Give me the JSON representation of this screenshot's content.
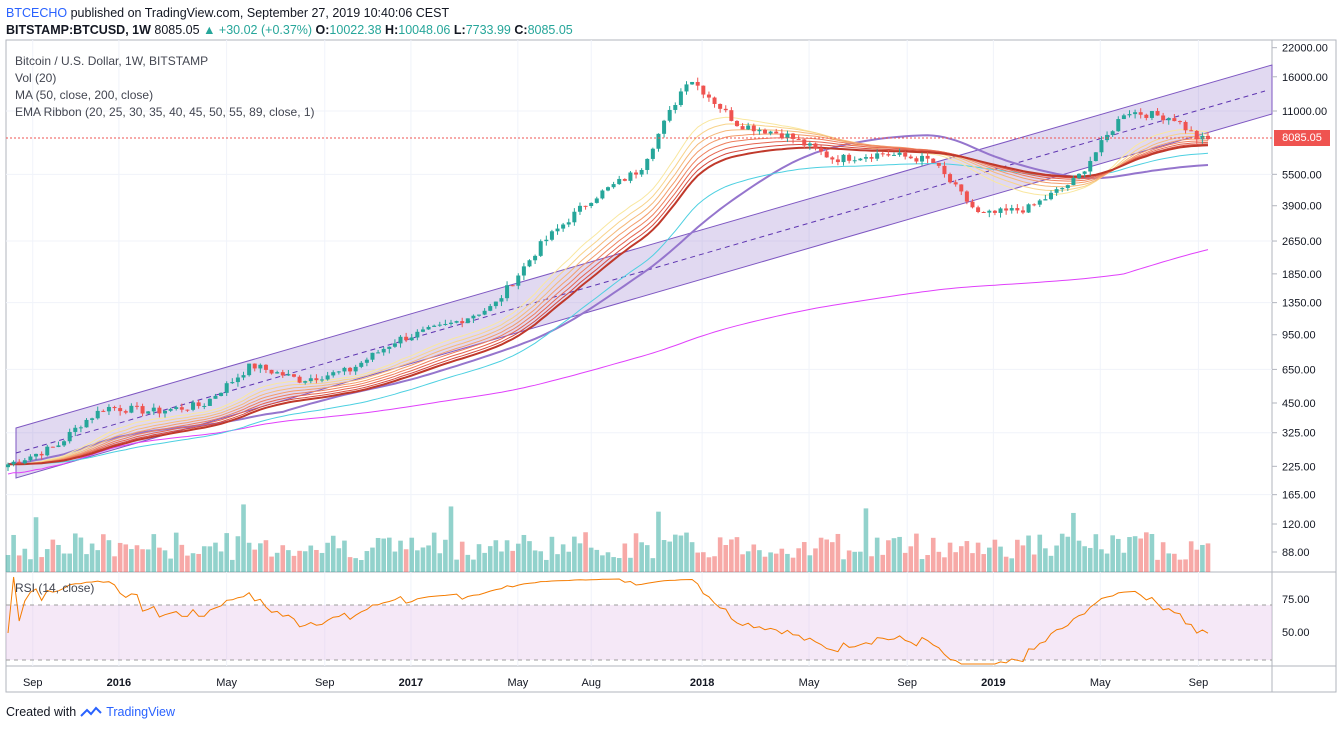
{
  "header": {
    "author": "BTCECHO",
    "published_text": " published on TradingView.com, September 27, 2019 10:40:06 CEST",
    "symbol": "BITSTAMP:BTCUSD, 1W",
    "price": "8085.05",
    "change": "+30.02 (+0.37%)",
    "o_label": "O:",
    "o_value": "10022.38",
    "h_label": "H:",
    "h_value": "10048.06",
    "l_label": "L:",
    "l_value": "7733.99",
    "c_label": "C:",
    "c_value": "8085.05"
  },
  "legend": {
    "title": "Bitcoin / U.S. Dollar, 1W, BITSTAMP",
    "vol": "Vol (20)",
    "ma": "MA (50, close, 200, close)",
    "ema": "EMA Ribbon (20, 25, 30, 35, 40, 45, 50, 55, 89, close, 1)"
  },
  "rsi": {
    "label": "RSI (14, close)",
    "upper": 70,
    "lower": 30,
    "ticks": [
      "75.00",
      "50.00"
    ]
  },
  "footer": {
    "created": "Created with",
    "brand": "TradingView"
  },
  "colors": {
    "up": "#26a69a",
    "down": "#ef5350",
    "channel": "#9575cd",
    "ma50": "#7e57c2",
    "ma200": "#e040fb",
    "rsi": "#f57c00",
    "accent": "#2962ff"
  },
  "chart_data": {
    "type": "candlestick",
    "log_scale": true,
    "price_axis_ticks": [
      "22000.00",
      "16000.00",
      "11000.00",
      "8085.05",
      "5500.00",
      "3900.00",
      "2650.00",
      "1850.00",
      "1350.00",
      "950.00",
      "650.00",
      "450.00",
      "325.00",
      "225.00",
      "165.00",
      "120.00",
      "88.00"
    ],
    "current_price_label": "8085.05",
    "time_axis_labels": [
      "Sep",
      "2016",
      "May",
      "Sep",
      "2017",
      "May",
      "Aug",
      "2018",
      "May",
      "Sep",
      "2019",
      "May",
      "Sep"
    ],
    "price_path": [
      {
        "t": "2015-08",
        "close": 230
      },
      {
        "t": "2015-10",
        "close": 280
      },
      {
        "t": "2015-11",
        "close": 360
      },
      {
        "t": "2015-12",
        "close": 430
      },
      {
        "t": "2016-02",
        "close": 410
      },
      {
        "t": "2016-04",
        "close": 440
      },
      {
        "t": "2016-06",
        "close": 680
      },
      {
        "t": "2016-08",
        "close": 580
      },
      {
        "t": "2016-10",
        "close": 640
      },
      {
        "t": "2016-12",
        "close": 900
      },
      {
        "t": "2017-02",
        "close": 1050
      },
      {
        "t": "2017-04",
        "close": 1300
      },
      {
        "t": "2017-06",
        "close": 2600
      },
      {
        "t": "2017-08",
        "close": 4200
      },
      {
        "t": "2017-10",
        "close": 5800
      },
      {
        "t": "2017-12",
        "close": 16000
      },
      {
        "t": "2018-02",
        "close": 9500
      },
      {
        "t": "2018-04",
        "close": 8500
      },
      {
        "t": "2018-06",
        "close": 6500
      },
      {
        "t": "2018-08",
        "close": 6900
      },
      {
        "t": "2018-10",
        "close": 6400
      },
      {
        "t": "2018-12",
        "close": 3500
      },
      {
        "t": "2019-02",
        "close": 3800
      },
      {
        "t": "2019-04",
        "close": 5200
      },
      {
        "t": "2019-06",
        "close": 11000
      },
      {
        "t": "2019-08",
        "close": 10200
      },
      {
        "t": "2019-09",
        "close": 8085.05
      }
    ]
  }
}
